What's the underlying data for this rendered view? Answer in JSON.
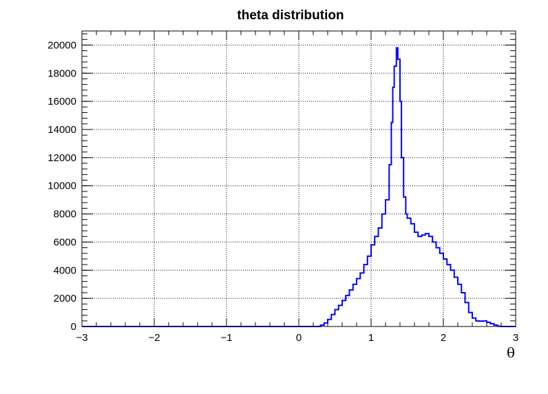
{
  "chart_data": {
    "type": "line",
    "title": "theta distribution",
    "xlabel": "θ",
    "ylabel": "",
    "xlim": [
      -3,
      3
    ],
    "ylim": [
      0,
      21000
    ],
    "grid": true,
    "line_color": "#0000ff",
    "x_ticks": [
      -3,
      -2,
      -1,
      0,
      1,
      2,
      3
    ],
    "x_tick_labels": [
      "−3",
      "−2",
      "−1",
      "0",
      "1",
      "2",
      "3"
    ],
    "y_ticks": [
      0,
      2000,
      4000,
      6000,
      8000,
      10000,
      12000,
      14000,
      16000,
      18000,
      20000
    ],
    "y_tick_labels": [
      "0",
      "2000",
      "4000",
      "6000",
      "8000",
      "10000",
      "12000",
      "14000",
      "16000",
      "18000",
      "20000"
    ],
    "series": [
      {
        "x": [
          -3.0,
          0.25,
          0.3,
          0.35,
          0.4,
          0.45,
          0.5,
          0.55,
          0.6,
          0.65,
          0.7,
          0.75,
          0.8,
          0.85,
          0.9,
          0.95,
          1.0,
          1.05,
          1.1,
          1.15,
          1.2,
          1.25,
          1.28,
          1.3,
          1.32,
          1.35,
          1.37,
          1.4,
          1.42,
          1.45,
          1.48,
          1.5,
          1.55,
          1.6,
          1.65,
          1.7,
          1.75,
          1.8,
          1.85,
          1.9,
          1.95,
          2.0,
          2.05,
          2.1,
          2.15,
          2.2,
          2.25,
          2.3,
          2.35,
          2.4,
          2.45,
          2.5,
          2.55,
          2.6,
          2.65,
          2.7,
          2.75,
          2.8,
          2.85,
          2.9,
          3.0
        ],
        "y": [
          0,
          0,
          100,
          250,
          500,
          850,
          1200,
          1500,
          1850,
          2200,
          2600,
          3000,
          3400,
          3800,
          4400,
          5000,
          5800,
          6400,
          7000,
          8000,
          9000,
          11500,
          14500,
          17000,
          18500,
          19800,
          19000,
          16000,
          12000,
          9200,
          8000,
          7700,
          7300,
          6700,
          6400,
          6500,
          6600,
          6400,
          6000,
          5600,
          5200,
          4800,
          4400,
          4000,
          3500,
          3000,
          2400,
          1700,
          1000,
          600,
          400,
          380,
          400,
          300,
          200,
          100,
          20,
          0,
          0,
          0,
          0
        ]
      }
    ]
  }
}
